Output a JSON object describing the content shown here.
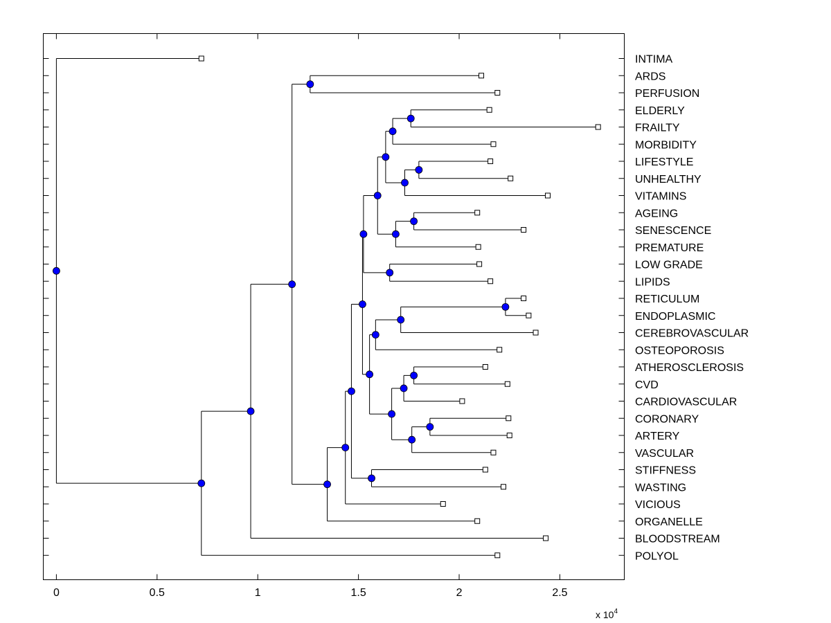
{
  "chart_data": {
    "type": "dendrogram",
    "orientation": "horizontal",
    "xlim": [
      -0.065,
      2.82
    ],
    "x_ticks": [
      {
        "value": 0,
        "label": "0"
      },
      {
        "value": 0.5,
        "label": "0.5"
      },
      {
        "value": 1,
        "label": "1"
      },
      {
        "value": 1.5,
        "label": "1.5"
      },
      {
        "value": 2,
        "label": "2"
      },
      {
        "value": 2.5,
        "label": "2.5"
      }
    ],
    "x_multiplier": {
      "base": "x 10",
      "exponent": "4"
    },
    "leaves": [
      {
        "label": "INTIMA",
        "x": 0.72
      },
      {
        "label": "ARDS",
        "x": 2.11
      },
      {
        "label": "PERFUSION",
        "x": 2.19
      },
      {
        "label": "ELDERLY",
        "x": 2.15
      },
      {
        "label": "FRAILTY",
        "x": 2.69
      },
      {
        "label": "MORBIDITY",
        "x": 2.17
      },
      {
        "label": "LIFESTYLE",
        "x": 2.155
      },
      {
        "label": "UNHEALTHY",
        "x": 2.255
      },
      {
        "label": "VITAMINS",
        "x": 2.44
      },
      {
        "label": "AGEING",
        "x": 2.09
      },
      {
        "label": "SENESCENCE",
        "x": 2.32
      },
      {
        "label": "PREMATURE",
        "x": 2.095
      },
      {
        "label": "LOW GRADE",
        "x": 2.1
      },
      {
        "label": "LIPIDS",
        "x": 2.155
      },
      {
        "label": "RETICULUM",
        "x": 2.32
      },
      {
        "label": "ENDOPLASMIC",
        "x": 2.345
      },
      {
        "label": "CEREBROVASCULAR",
        "x": 2.38
      },
      {
        "label": "OSTEOPOROSIS",
        "x": 2.2
      },
      {
        "label": "ATHEROSCLEROSIS",
        "x": 2.13
      },
      {
        "label": "CVD",
        "x": 2.24
      },
      {
        "label": "CARDIOVASCULAR",
        "x": 2.015
      },
      {
        "label": "CORONARY",
        "x": 2.245
      },
      {
        "label": "ARTERY",
        "x": 2.25
      },
      {
        "label": "VASCULAR",
        "x": 2.17
      },
      {
        "label": "STIFFNESS",
        "x": 2.13
      },
      {
        "label": "WASTING",
        "x": 2.22
      },
      {
        "label": "VICIOUS",
        "x": 1.92
      },
      {
        "label": "ORGANELLE",
        "x": 2.09
      },
      {
        "label": "BLOODSTREAM",
        "x": 2.43
      },
      {
        "label": "POLYOL",
        "x": 2.19
      }
    ],
    "merges": [
      {
        "id": "n_ards_perf",
        "x": 1.26,
        "children": [
          1,
          2
        ]
      },
      {
        "id": "n_eld_fra",
        "x": 1.76,
        "children": [
          3,
          4
        ]
      },
      {
        "id": "n_eld_mor",
        "x": 1.67,
        "children": [
          "n_eld_fra",
          5
        ]
      },
      {
        "id": "n_life_unh",
        "x": 1.8,
        "children": [
          6,
          7
        ]
      },
      {
        "id": "n_life_vit",
        "x": 1.73,
        "children": [
          "n_life_unh",
          8
        ]
      },
      {
        "id": "n_eld_life",
        "x": 1.635,
        "children": [
          "n_eld_mor",
          "n_life_vit"
        ]
      },
      {
        "id": "n_age_sen",
        "x": 1.775,
        "children": [
          9,
          10
        ]
      },
      {
        "id": "n_age_pre",
        "x": 1.685,
        "children": [
          "n_age_sen",
          11
        ]
      },
      {
        "id": "n_eld_age",
        "x": 1.595,
        "children": [
          "n_eld_life",
          "n_age_pre"
        ]
      },
      {
        "id": "n_low_lip",
        "x": 1.655,
        "children": [
          12,
          13
        ]
      },
      {
        "id": "n_eld_low",
        "x": 1.525,
        "children": [
          "n_eld_age",
          "n_low_lip"
        ]
      },
      {
        "id": "n_ret_end",
        "x": 2.23,
        "children": [
          14,
          15
        ]
      },
      {
        "id": "n_ret_cer",
        "x": 1.71,
        "children": [
          "n_ret_end",
          16
        ]
      },
      {
        "id": "n_ret_ost",
        "x": 1.585,
        "children": [
          "n_ret_cer",
          17
        ]
      },
      {
        "id": "n_ath_cvd",
        "x": 1.775,
        "children": [
          18,
          19
        ]
      },
      {
        "id": "n_ath_car",
        "x": 1.725,
        "children": [
          "n_ath_cvd",
          20
        ]
      },
      {
        "id": "n_cor_art",
        "x": 1.855,
        "children": [
          21,
          22
        ]
      },
      {
        "id": "n_cor_vas",
        "x": 1.765,
        "children": [
          "n_cor_art",
          23
        ]
      },
      {
        "id": "n_ath_cor",
        "x": 1.665,
        "children": [
          "n_ath_car",
          "n_cor_vas"
        ]
      },
      {
        "id": "n_ret_ath",
        "x": 1.555,
        "children": [
          "n_ret_ost",
          "n_ath_cor"
        ]
      },
      {
        "id": "n_eld_ret",
        "x": 1.52,
        "children": [
          "n_eld_low",
          "n_ret_ath"
        ]
      },
      {
        "id": "n_sti_was",
        "x": 1.565,
        "children": [
          24,
          25
        ]
      },
      {
        "id": "n_eld_sti",
        "x": 1.465,
        "children": [
          "n_eld_ret",
          "n_sti_was"
        ]
      },
      {
        "id": "n_eld_vic",
        "x": 1.435,
        "children": [
          "n_eld_sti",
          26
        ]
      },
      {
        "id": "n_eld_org",
        "x": 1.345,
        "children": [
          "n_eld_vic",
          27
        ]
      },
      {
        "id": "n_ards_eld",
        "x": 1.17,
        "children": [
          "n_ards_perf",
          "n_eld_org"
        ]
      },
      {
        "id": "n_ards_blo",
        "x": 0.965,
        "children": [
          "n_ards_eld",
          28
        ]
      },
      {
        "id": "n_ards_pol",
        "x": 0.72,
        "children": [
          "n_ards_blo",
          29
        ]
      },
      {
        "id": "n_root",
        "x": 0.0,
        "children": [
          0,
          "n_ards_pol"
        ]
      }
    ]
  },
  "colors": {
    "node_fill": "#0000ff",
    "line": "#000000",
    "leaf_marker_fill": "#ffffff",
    "axes_box": "#000000",
    "background": "#ffffff"
  }
}
